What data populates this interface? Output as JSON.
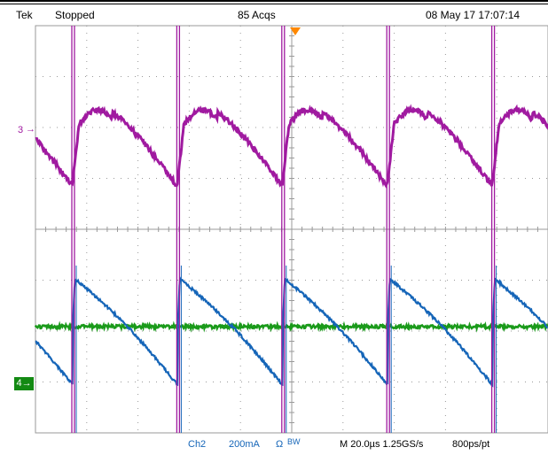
{
  "status": {
    "brand": "Tek",
    "state": "Stopped",
    "acquisitions": "85 Acqs",
    "datetime": "08 May 17 17:07:14"
  },
  "markers": {
    "ch3": "3",
    "ch4": "4"
  },
  "footer": {
    "ch2_label": "Ch2",
    "ch2_scale": "200mA",
    "ch2_coupling": "Ω",
    "bw_label": "BW",
    "timebase": "M 20.0µs 1.25GS/s",
    "record": "800ps/pt"
  },
  "colors": {
    "ch3": "#a01aa0",
    "ch2": "#1565b8",
    "ch1": "#1a9a1a",
    "ch4_marker": "#138a13",
    "grid": "#9a9a9a",
    "trigger": "#ff8800"
  }
}
